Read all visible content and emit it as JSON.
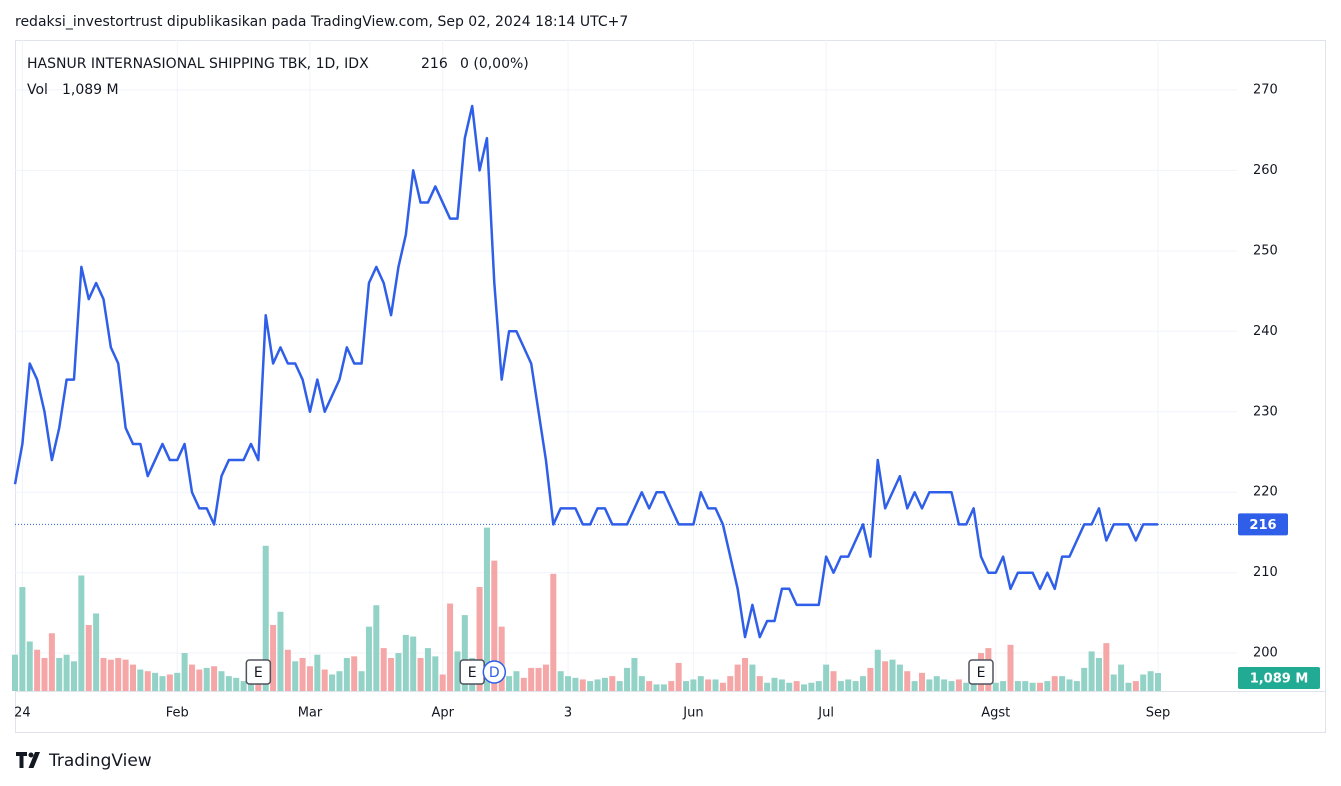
{
  "chart_data": {
    "type": "line",
    "caption": "redaksi_investortrust dipublikasikan pada TradingView.com, Sep 02, 2024 18:14 UTC+7",
    "title": "HASNUR INTERNASIONAL SHIPPING TBK, 1D, IDX",
    "change_label": "0 (0,00%)",
    "brand": "TradingView",
    "color": "#2f5fe8",
    "categories": [
      null,
      "24",
      null,
      null,
      null,
      null,
      null,
      null,
      null,
      null,
      null,
      null,
      null,
      null,
      null,
      null,
      null,
      null,
      null,
      null,
      null,
      null,
      "Feb",
      null,
      null,
      null,
      null,
      null,
      null,
      null,
      null,
      null,
      null,
      null,
      null,
      null,
      null,
      null,
      null,
      null,
      "Mar",
      null,
      null,
      null,
      null,
      null,
      null,
      null,
      null,
      null,
      null,
      null,
      null,
      null,
      null,
      null,
      null,
      null,
      "Apr",
      null,
      null,
      null,
      null,
      null,
      null,
      null,
      null,
      null,
      null,
      null,
      null,
      null,
      null,
      null,
      null,
      "3",
      null,
      null,
      null,
      null,
      null,
      null,
      null,
      null,
      null,
      null,
      null,
      null,
      null,
      null,
      null,
      null,
      "Jun",
      null,
      null,
      null,
      null,
      null,
      null,
      null,
      null,
      null,
      null,
      null,
      null,
      null,
      null,
      null,
      null,
      null,
      "Jul",
      null,
      null,
      null,
      null,
      null,
      null,
      null,
      null,
      null,
      null,
      null,
      null,
      null,
      null,
      null,
      null,
      null,
      null,
      null,
      null,
      null,
      null,
      "Agst",
      null,
      null,
      null,
      null,
      null,
      null,
      null,
      null,
      null,
      null,
      null,
      null,
      null,
      null,
      null,
      null,
      null,
      null,
      null,
      null,
      null,
      "Sep"
    ],
    "values": [
      221,
      226,
      236,
      234,
      230,
      224,
      228,
      234,
      234,
      248,
      244,
      246,
      244,
      238,
      236,
      228,
      226,
      226,
      222,
      224,
      226,
      224,
      224,
      226,
      220,
      218,
      218,
      216,
      222,
      224,
      224,
      224,
      226,
      224,
      242,
      236,
      238,
      236,
      236,
      234,
      230,
      234,
      230,
      232,
      234,
      238,
      236,
      236,
      246,
      248,
      246,
      242,
      248,
      252,
      260,
      256,
      256,
      258,
      256,
      254,
      254,
      264,
      268,
      260,
      264,
      246,
      234,
      240,
      240,
      238,
      236,
      230,
      224,
      216,
      218,
      218,
      218,
      216,
      216,
      218,
      218,
      216,
      216,
      216,
      218,
      220,
      218,
      220,
      220,
      218,
      216,
      216,
      216,
      220,
      218,
      218,
      216,
      212,
      208,
      202,
      206,
      202,
      204,
      204,
      208,
      208,
      206,
      206,
      206,
      206,
      212,
      210,
      212,
      212,
      214,
      216,
      212,
      224,
      218,
      220,
      222,
      218,
      220,
      218,
      220,
      220,
      220,
      220,
      216,
      216,
      218,
      212,
      210,
      210,
      212,
      208,
      210,
      210,
      210,
      208,
      210,
      208,
      212,
      212,
      214,
      216,
      216,
      218,
      214,
      216,
      216,
      216,
      214,
      216,
      216,
      216
    ],
    "ylim": [
      195.3,
      276.2
    ],
    "yticks": [
      200,
      210,
      220,
      230,
      240,
      250,
      260,
      270
    ],
    "grid": true,
    "volume": {
      "name": "Vol",
      "up_color": "#92d2c7",
      "down_color": "#f5a6a6",
      "label_color": "#22ab94",
      "last_label": "1,089 M",
      "values": [
        2.2,
        6.3,
        3.0,
        2.5,
        2.0,
        3.5,
        2.0,
        2.2,
        1.8,
        7.0,
        4.0,
        4.7,
        2.0,
        1.9,
        2.0,
        1.9,
        1.6,
        1.3,
        1.2,
        1.1,
        0.9,
        1.0,
        1.1,
        2.3,
        1.6,
        1.3,
        1.4,
        1.5,
        1.2,
        0.9,
        0.8,
        0.6,
        1.0,
        1.2,
        8.8,
        4.0,
        4.8,
        2.5,
        1.8,
        2.0,
        1.5,
        2.2,
        1.3,
        1.0,
        1.2,
        2.0,
        2.1,
        1.2,
        3.9,
        5.2,
        2.6,
        2.0,
        2.3,
        3.4,
        3.3,
        2.0,
        2.6,
        2.1,
        1.0,
        5.3,
        2.4,
        4.6,
        2.0,
        6.3,
        9.9,
        7.9,
        3.9,
        0.9,
        1.2,
        0.8,
        1.4,
        1.4,
        1.6,
        7.1,
        1.2,
        0.9,
        0.8,
        0.7,
        0.6,
        0.7,
        0.8,
        0.9,
        0.6,
        1.4,
        2.0,
        0.9,
        0.6,
        0.4,
        0.4,
        0.6,
        1.7,
        0.6,
        0.7,
        0.9,
        0.7,
        0.7,
        0.5,
        0.9,
        1.6,
        2.0,
        1.6,
        0.9,
        0.5,
        0.8,
        0.7,
        0.5,
        0.6,
        0.4,
        0.5,
        0.6,
        1.6,
        1.2,
        0.6,
        0.7,
        0.6,
        0.9,
        1.4,
        2.5,
        1.8,
        1.9,
        1.6,
        1.2,
        0.6,
        1.1,
        0.7,
        0.9,
        0.7,
        0.6,
        0.7,
        0.5,
        1.0,
        2.3,
        2.6,
        0.5,
        0.6,
        2.8,
        0.6,
        0.6,
        0.5,
        0.5,
        0.6,
        0.9,
        0.9,
        0.7,
        0.6,
        1.4,
        2.4,
        2.0,
        2.9,
        1.0,
        1.6,
        0.5,
        0.6,
        1.0,
        1.2,
        1.089
      ]
    },
    "events": [
      "E",
      "E",
      "D",
      "E"
    ]
  }
}
